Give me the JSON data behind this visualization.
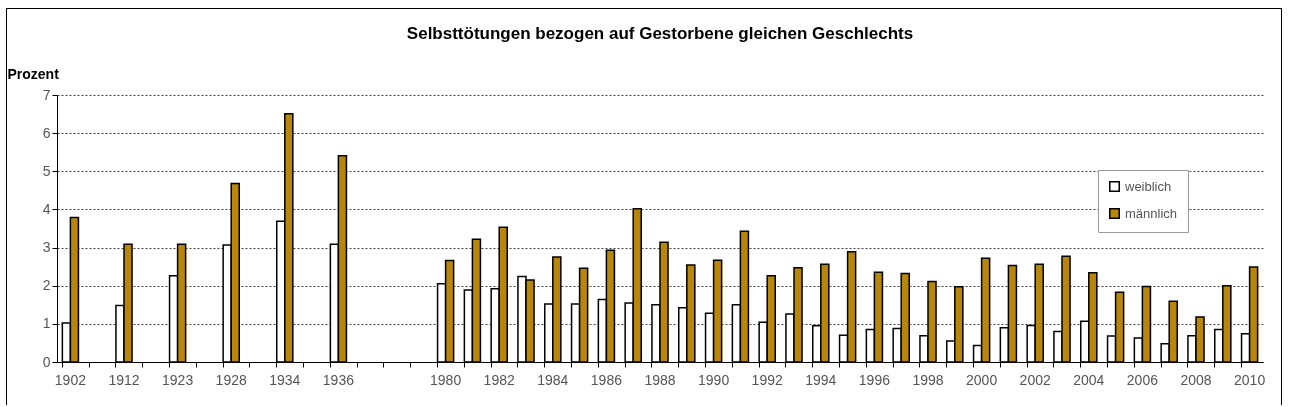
{
  "chart_data": {
    "type": "bar",
    "title": "Selbsttötungen bezogen auf Gestorbene gleichen Geschlechts",
    "ylabel": "Prozent",
    "categories": [
      "1902",
      null,
      "1912",
      null,
      "1923",
      null,
      "1928",
      null,
      "1934",
      null,
      "1936",
      null,
      null,
      null,
      "1980",
      null,
      "1982",
      null,
      "1984",
      null,
      "1986",
      null,
      "1988",
      null,
      "1990",
      null,
      "1992",
      null,
      "1994",
      null,
      "1996",
      null,
      "1998",
      null,
      "2000",
      null,
      "2002",
      null,
      "2004",
      null,
      "2006",
      null,
      "2008",
      null,
      "2010"
    ],
    "series": [
      {
        "name": "weiblich",
        "color": "#ffffff",
        "values": [
          1.02,
          null,
          1.48,
          null,
          2.26,
          null,
          3.07,
          null,
          3.69,
          null,
          3.09,
          null,
          null,
          null,
          2.05,
          1.89,
          1.92,
          2.24,
          1.52,
          1.52,
          1.64,
          1.55,
          1.5,
          1.42,
          1.28,
          1.5,
          1.04,
          1.26,
          0.95,
          0.7,
          0.85,
          0.88,
          0.69,
          0.55,
          0.43,
          0.9,
          0.96,
          0.8,
          1.07,
          0.68,
          0.63,
          0.48,
          0.69,
          0.85,
          0.74
        ]
      },
      {
        "name": "männlich",
        "color": "#b8860b",
        "values": [
          3.79,
          null,
          3.09,
          null,
          3.09,
          null,
          4.68,
          null,
          6.51,
          null,
          5.41,
          null,
          null,
          null,
          2.66,
          3.22,
          3.53,
          2.15,
          2.75,
          2.46,
          2.93,
          4.02,
          3.14,
          2.54,
          2.67,
          3.43,
          2.26,
          2.47,
          2.56,
          2.89,
          2.35,
          2.32,
          2.11,
          1.97,
          2.72,
          2.53,
          2.56,
          2.77,
          2.34,
          1.83,
          1.98,
          1.59,
          1.18,
          2.0,
          2.49
        ]
      }
    ],
    "ylim": [
      0,
      7
    ],
    "yticks": [
      0,
      1,
      2,
      3,
      4,
      5,
      6,
      7
    ],
    "grid": "y",
    "legend": "top right"
  }
}
